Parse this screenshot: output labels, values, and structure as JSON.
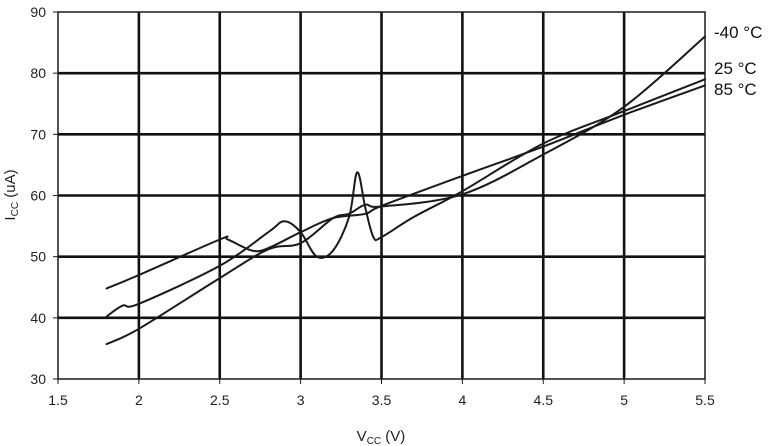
{
  "chart_data": {
    "type": "line",
    "title": "",
    "xlabel": {
      "main": "V",
      "sub": "CC",
      "unit": " (V)"
    },
    "ylabel": {
      "main": "I",
      "sub": "CC",
      "unit": " (uA)"
    },
    "xlim": [
      1.5,
      5.5
    ],
    "ylim": [
      30,
      90
    ],
    "xticks": [
      1.5,
      2,
      2.5,
      3,
      3.5,
      4,
      4.5,
      5,
      5.5
    ],
    "xtick_labels": [
      "1.5",
      "2",
      "2.5",
      "3",
      "3.5",
      "4",
      "4.5",
      "5",
      "5.5"
    ],
    "yticks": [
      30,
      40,
      50,
      60,
      70,
      80,
      90
    ],
    "ytick_labels": [
      "30",
      "40",
      "50",
      "60",
      "70",
      "80",
      "90"
    ],
    "grid": true,
    "legend": "inline labels at right end of lines",
    "line_color": "#1a1a1a",
    "grid_color": "#111111",
    "series": [
      {
        "name": "-40 °C",
        "x": [
          1.8,
          2.0,
          2.5,
          2.8,
          3.0,
          3.2,
          3.3,
          3.4,
          3.5,
          4.0,
          4.5,
          5.0,
          5.5
        ],
        "y": [
          35.7,
          38.2,
          46.5,
          51.2,
          52.2,
          56.3,
          57.0,
          58.5,
          58.2,
          60.2,
          66.7,
          74.5,
          86.0
        ]
      },
      {
        "name": "25 °C",
        "x": [
          1.8,
          1.9,
          2.0,
          2.5,
          2.8,
          2.9,
          3.0,
          3.1,
          3.2,
          3.3,
          3.35,
          3.4,
          3.45,
          3.5,
          3.7,
          4.0,
          4.5,
          5.0,
          5.5
        ],
        "y": [
          40.2,
          42.0,
          42.3,
          48.5,
          54.0,
          55.8,
          54.0,
          50.0,
          51.0,
          56.5,
          63.8,
          58.0,
          53.2,
          53.2,
          56.5,
          60.7,
          68.5,
          73.8,
          79.0
        ]
      },
      {
        "name": "85 °C",
        "x": [
          1.8,
          2.0,
          2.5,
          2.55,
          2.7,
          2.8,
          3.0,
          3.2,
          3.4,
          3.5,
          4.0,
          4.5,
          5.0,
          5.5
        ],
        "y": [
          44.8,
          47.0,
          52.8,
          52.8,
          51.0,
          51.4,
          54.0,
          56.3,
          57.0,
          58.3,
          63.2,
          68.0,
          73.2,
          78.0
        ]
      }
    ]
  }
}
